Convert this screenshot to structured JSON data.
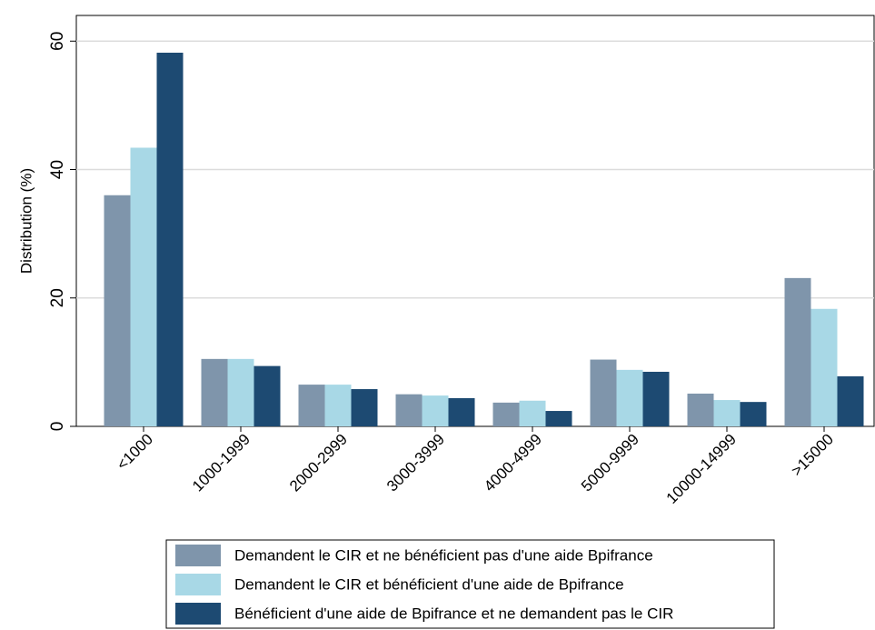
{
  "chart_data": {
    "type": "bar",
    "y_label": "Distribution (%)",
    "categories": [
      "<1000",
      "1000-1999",
      "2000-2999",
      "3000-3999",
      "4000-4999",
      "5000-9999",
      "10000-14999",
      ">15000"
    ],
    "series": [
      {
        "name": "Demandent le CIR et ne bénéficient pas d'une aide Bpifrance",
        "color": "#7f95ab",
        "values": [
          36.0,
          10.5,
          6.5,
          5.0,
          3.7,
          10.4,
          5.1,
          23.1
        ]
      },
      {
        "name": "Demandent le CIR et bénéficient d'une aide de Bpifrance",
        "color": "#a8d8e6",
        "values": [
          43.4,
          10.5,
          6.5,
          4.8,
          4.0,
          8.8,
          4.1,
          18.3
        ]
      },
      {
        "name": "Bénéficient d'une aide de Bpifrance et ne demandent pas le CIR",
        "color": "#1d4a72",
        "values": [
          58.2,
          9.4,
          5.8,
          4.4,
          2.4,
          8.5,
          3.8,
          7.8
        ]
      }
    ],
    "ylim": [
      0,
      64
    ],
    "yticks": [
      0,
      20,
      40,
      60
    ],
    "grid": true
  }
}
